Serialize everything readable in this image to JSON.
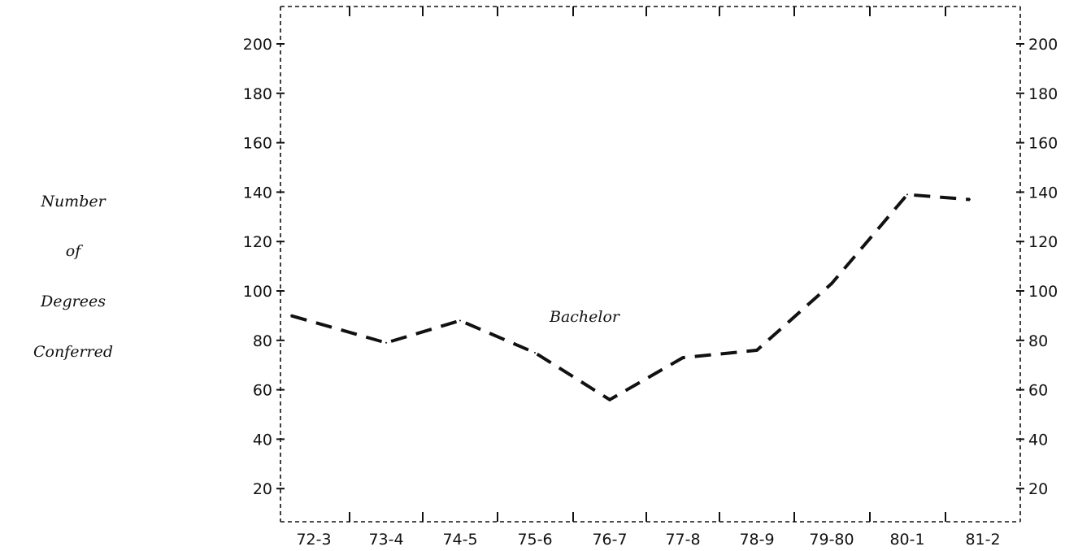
{
  "chart_data": {
    "type": "line",
    "categories": [
      "72-3",
      "73-4",
      "74-5",
      "75-6",
      "76-7",
      "77-8",
      "78-9",
      "79-80",
      "80-1",
      "81-2"
    ],
    "series": [
      {
        "name": "Bachelor",
        "values": [
          90,
          79,
          88,
          75,
          56,
          73,
          76,
          103,
          139,
          137
        ]
      }
    ],
    "ylabel_lines": [
      "Number",
      "of",
      "Degrees",
      "Conferred"
    ],
    "y_ticks": [
      20,
      40,
      60,
      80,
      100,
      120,
      140,
      160,
      180,
      200
    ],
    "ylim": [
      0,
      215
    ],
    "grid": false,
    "legend": "none",
    "line_style": "dashed",
    "colors": {
      "line": "#111111",
      "axes": "#111111",
      "background": "#ffffff"
    }
  }
}
